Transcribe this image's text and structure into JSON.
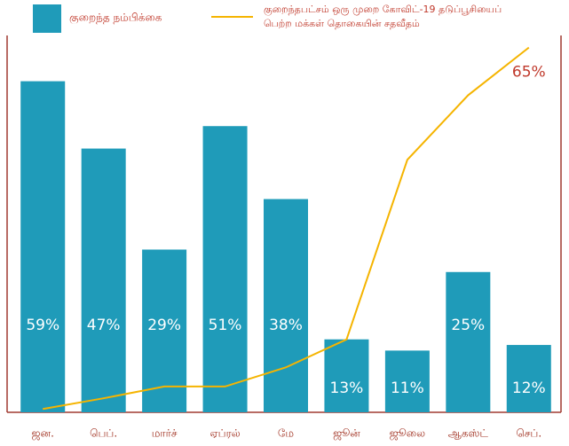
{
  "chart_data": {
    "type": "bar-line",
    "categories": [
      "ஜன.",
      "பெப்.",
      "மார்ச்",
      "ஏப்ரல்",
      "மே",
      "ஜூன்",
      "ஜூலை",
      "ஆகஸ்ட்",
      "செப்."
    ],
    "series": [
      {
        "name": "குறைந்த நம்பிக்கை",
        "type": "bar",
        "color": "#1f9bb9",
        "values": [
          59,
          47,
          29,
          51,
          38,
          13,
          11,
          25,
          12
        ],
        "value_labels": [
          "59%",
          "47%",
          "29%",
          "51%",
          "38%",
          "13%",
          "11%",
          "25%",
          "12%"
        ]
      },
      {
        "name": "குறைந்தபட்சம் ஒரு முறை கோவிட்-19 தடுப்பூசியைப் பெற்ற மக்கள் தொகையின் சதவீதம்",
        "type": "line",
        "color": "#f5b400",
        "values": [
          0.6,
          2.5,
          4.6,
          4.6,
          8,
          13,
          45,
          56.5,
          65
        ],
        "value_labels": [
          null,
          null,
          null,
          null,
          null,
          null,
          null,
          null,
          "65%"
        ]
      }
    ],
    "ylim": [
      0,
      73
    ]
  }
}
